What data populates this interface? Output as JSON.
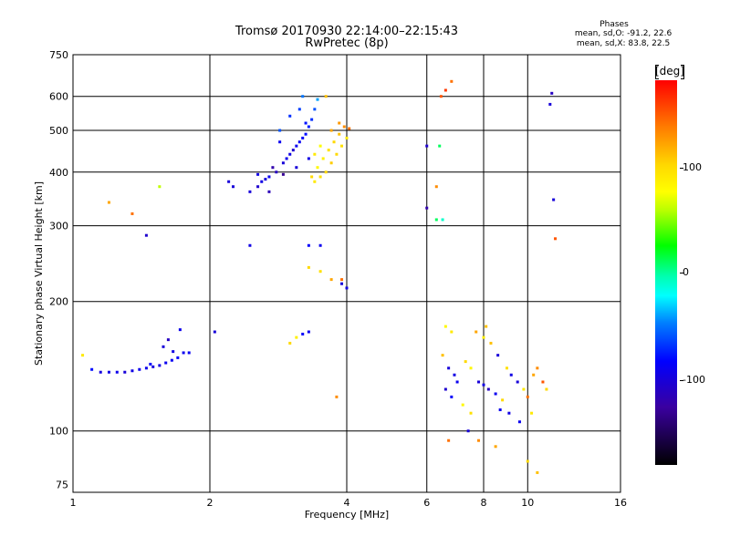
{
  "chart_data": {
    "type": "scatter",
    "title": "Tromsø 20170930 22:14:00–22:15:43",
    "subtitle": "RwPretec (8p)",
    "xlabel": "Frequency [MHz]",
    "ylabel": "Stationary phase Virtual Height [km]",
    "x_scale": "log",
    "y_scale": "log",
    "xlim": [
      1,
      16
    ],
    "ylim": [
      72,
      750
    ],
    "x_ticks": [
      1,
      2,
      4,
      6,
      8,
      10,
      16
    ],
    "y_ticks": [
      75,
      100,
      200,
      300,
      400,
      500,
      600,
      750
    ],
    "grid_x": [
      2,
      4,
      6,
      8,
      10
    ],
    "grid_y": [
      100,
      200,
      300,
      400,
      500,
      600
    ],
    "colorbar": {
      "label": "[deg]",
      "ticks": [
        100,
        0,
        -100
      ],
      "range": [
        -180,
        180
      ],
      "colormap": "rainbow"
    },
    "stats": {
      "title": "Phases",
      "o_mode": "mean, sd,O: -91.2, 22.6",
      "x_mode": "mean, sd,X:  83.8, 22.5"
    },
    "series": [
      {
        "points": [
          [
            1.2,
            137,
            -95
          ],
          [
            1.25,
            137,
            -92
          ],
          [
            1.3,
            137,
            -100
          ],
          [
            1.35,
            138,
            -95
          ],
          [
            1.4,
            139,
            -90
          ],
          [
            1.45,
            140,
            -92
          ],
          [
            1.5,
            141,
            -98
          ],
          [
            1.55,
            142,
            -95
          ],
          [
            1.6,
            144,
            -90
          ],
          [
            1.65,
            146,
            -88
          ],
          [
            1.7,
            148,
            -85
          ],
          [
            1.75,
            152,
            -90
          ],
          [
            1.62,
            163,
            -110
          ],
          [
            1.72,
            172,
            -92
          ],
          [
            1.58,
            157,
            -100
          ],
          [
            1.66,
            153,
            -95
          ],
          [
            1.48,
            143,
            -85
          ],
          [
            1.8,
            152,
            -88
          ],
          [
            1.1,
            139,
            -80
          ],
          [
            1.15,
            137,
            -98
          ],
          [
            2.45,
            360,
            -100
          ],
          [
            2.55,
            370,
            -105
          ],
          [
            2.6,
            380,
            -95
          ],
          [
            2.7,
            390,
            -90
          ],
          [
            2.8,
            400,
            -110
          ],
          [
            2.9,
            420,
            -100
          ],
          [
            3.0,
            440,
            -95
          ],
          [
            3.1,
            460,
            -90
          ],
          [
            3.2,
            480,
            -85
          ],
          [
            2.75,
            410,
            -120
          ],
          [
            2.65,
            385,
            -98
          ],
          [
            2.95,
            430,
            -92
          ],
          [
            3.05,
            450,
            -105
          ],
          [
            3.15,
            470,
            -88
          ],
          [
            3.25,
            490,
            -80
          ],
          [
            3.3,
            510,
            -75
          ],
          [
            3.35,
            530,
            -70
          ],
          [
            3.4,
            560,
            -60
          ],
          [
            3.2,
            600,
            -50
          ],
          [
            3.0,
            540,
            -70
          ],
          [
            2.85,
            470,
            -90
          ],
          [
            3.15,
            560,
            -65
          ],
          [
            3.45,
            590,
            -40
          ],
          [
            2.9,
            395,
            -130
          ],
          [
            2.7,
            360,
            -115
          ],
          [
            3.1,
            410,
            -100
          ],
          [
            3.25,
            520,
            -78
          ],
          [
            2.55,
            395,
            -95
          ],
          [
            2.85,
            500,
            -60
          ],
          [
            3.3,
            430,
            -95
          ],
          [
            2.2,
            380,
            -100
          ],
          [
            2.25,
            370,
            -100
          ],
          [
            3.3,
            270,
            -85
          ],
          [
            3.5,
            270,
            -90
          ],
          [
            2.45,
            270,
            -95
          ],
          [
            3.9,
            220,
            -100
          ],
          [
            4.0,
            215,
            -95
          ],
          [
            3.3,
            170,
            -90
          ],
          [
            3.2,
            168,
            -85
          ],
          [
            3.4,
            380,
            90
          ],
          [
            3.5,
            390,
            95
          ],
          [
            3.6,
            400,
            100
          ],
          [
            3.7,
            420,
            105
          ],
          [
            3.8,
            440,
            100
          ],
          [
            3.9,
            460,
            95
          ],
          [
            4.0,
            480,
            90
          ],
          [
            3.55,
            430,
            85
          ],
          [
            3.65,
            450,
            95
          ],
          [
            3.75,
            470,
            100
          ],
          [
            3.85,
            490,
            110
          ],
          [
            3.45,
            410,
            80
          ],
          [
            3.35,
            390,
            100
          ],
          [
            3.7,
            500,
            120
          ],
          [
            3.95,
            510,
            130
          ],
          [
            3.6,
            600,
            110
          ],
          [
            3.85,
            520,
            125
          ],
          [
            3.5,
            460,
            75
          ],
          [
            3.4,
            440,
            90
          ],
          [
            4.05,
            505,
            140
          ],
          [
            3.3,
            240,
            100
          ],
          [
            3.5,
            235,
            95
          ],
          [
            3.7,
            225,
            120
          ],
          [
            3.9,
            225,
            140
          ],
          [
            3.0,
            160,
            100
          ],
          [
            3.1,
            165,
            85
          ],
          [
            3.8,
            120,
            130
          ],
          [
            2.05,
            170,
            -100
          ],
          [
            1.05,
            150,
            90
          ],
          [
            1.55,
            370,
            60
          ],
          [
            1.2,
            340,
            120
          ],
          [
            1.35,
            320,
            140
          ],
          [
            1.45,
            285,
            -105
          ],
          [
            6.0,
            460,
            -105
          ],
          [
            6.0,
            330,
            -120
          ],
          [
            6.3,
            310,
            10
          ],
          [
            6.5,
            310,
            -10
          ],
          [
            6.3,
            370,
            130
          ],
          [
            6.4,
            460,
            10
          ],
          [
            6.45,
            600,
            150
          ],
          [
            6.6,
            620,
            160
          ],
          [
            6.8,
            650,
            140
          ],
          [
            6.6,
            175,
            80
          ],
          [
            6.8,
            170,
            90
          ],
          [
            6.5,
            150,
            110
          ],
          [
            6.7,
            140,
            -100
          ],
          [
            6.9,
            135,
            -95
          ],
          [
            7.0,
            130,
            -90
          ],
          [
            6.6,
            125,
            -105
          ],
          [
            6.8,
            120,
            -85
          ],
          [
            7.2,
            115,
            80
          ],
          [
            7.5,
            110,
            95
          ],
          [
            7.8,
            130,
            -100
          ],
          [
            8.0,
            128,
            -95
          ],
          [
            8.2,
            125,
            -110
          ],
          [
            8.5,
            122,
            -90
          ],
          [
            8.8,
            118,
            100
          ],
          [
            9.0,
            140,
            95
          ],
          [
            8.6,
            150,
            -100
          ],
          [
            8.3,
            160,
            110
          ],
          [
            8.0,
            165,
            85
          ],
          [
            7.7,
            170,
            120
          ],
          [
            9.2,
            135,
            -95
          ],
          [
            9.5,
            130,
            -100
          ],
          [
            9.8,
            125,
            90
          ],
          [
            10.0,
            120,
            140
          ],
          [
            10.3,
            135,
            120
          ],
          [
            10.5,
            140,
            130
          ],
          [
            10.8,
            130,
            150
          ],
          [
            11.0,
            125,
            100
          ],
          [
            10.2,
            110,
            90
          ],
          [
            9.6,
            105,
            -90
          ],
          [
            7.4,
            100,
            -100
          ],
          [
            7.8,
            95,
            130
          ],
          [
            6.7,
            95,
            140
          ],
          [
            8.5,
            92,
            120
          ],
          [
            10.0,
            85,
            100
          ],
          [
            10.5,
            80,
            110
          ],
          [
            11.2,
            575,
            -100
          ],
          [
            11.3,
            610,
            -110
          ],
          [
            11.4,
            345,
            -100
          ],
          [
            11.5,
            280,
            150
          ],
          [
            9.1,
            110,
            -95
          ],
          [
            8.7,
            112,
            -90
          ],
          [
            7.5,
            140,
            80
          ],
          [
            7.3,
            145,
            100
          ],
          [
            8.1,
            175,
            110
          ]
        ]
      }
    ]
  }
}
